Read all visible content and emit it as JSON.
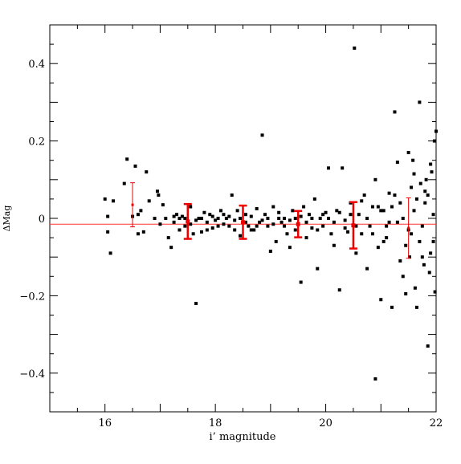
{
  "chart_data": {
    "type": "scatter",
    "xlabel": "i’ magnitude",
    "ylabel": "ΔMag",
    "xlim": [
      15,
      22
    ],
    "ylim": [
      -0.5,
      0.5
    ],
    "x_ticks": [
      16,
      18,
      20,
      22
    ],
    "x_tick_labels": [
      "16",
      "18",
      "20",
      "22"
    ],
    "y_ticks": [
      -0.4,
      -0.2,
      0,
      0.2,
      0.4
    ],
    "y_tick_labels": [
      "−0.4",
      "−0.2",
      "0",
      "0.2",
      "0.4"
    ],
    "grid": false,
    "reference_line": {
      "y": -0.015,
      "color": "#ff3333"
    },
    "colors": {
      "points": "#000000",
      "error_bars": "#ee0000",
      "reference_line": "#ff3333"
    },
    "binned_points": [
      {
        "x": 16.5,
        "y": 0.035,
        "err": 0.057
      },
      {
        "x": 17.5,
        "y": -0.008,
        "err": 0.045
      },
      {
        "x": 18.5,
        "y": -0.01,
        "err": 0.043
      },
      {
        "x": 19.5,
        "y": -0.015,
        "err": 0.034
      },
      {
        "x": 20.5,
        "y": -0.018,
        "err": 0.06
      },
      {
        "x": 21.5,
        "y": -0.025,
        "err": 0.078
      }
    ],
    "points": [
      [
        16.0,
        0.05
      ],
      [
        16.05,
        0.005
      ],
      [
        16.1,
        -0.09
      ],
      [
        16.15,
        0.045
      ],
      [
        16.05,
        -0.035
      ],
      [
        16.35,
        0.09
      ],
      [
        16.4,
        0.153
      ],
      [
        16.55,
        0.135
      ],
      [
        16.6,
        -0.04
      ],
      [
        16.65,
        0.02
      ],
      [
        16.7,
        -0.035
      ],
      [
        16.75,
        0.12
      ],
      [
        16.8,
        0.045
      ],
      [
        16.6,
        0.01
      ],
      [
        16.95,
        0.07
      ],
      [
        16.97,
        0.06
      ],
      [
        17.0,
        -0.015
      ],
      [
        17.05,
        0.035
      ],
      [
        16.9,
        0.0
      ],
      [
        16.5,
        0.005
      ],
      [
        17.1,
        0.0
      ],
      [
        17.15,
        -0.05
      ],
      [
        17.2,
        -0.075
      ],
      [
        17.25,
        -0.01
      ],
      [
        17.3,
        0.01
      ],
      [
        17.35,
        -0.03
      ],
      [
        17.4,
        0.005
      ],
      [
        17.45,
        -0.02
      ],
      [
        17.55,
        0.03
      ],
      [
        17.6,
        -0.04
      ],
      [
        17.65,
        -0.22
      ],
      [
        17.7,
        0.0
      ],
      [
        17.75,
        -0.035
      ],
      [
        17.8,
        0.015
      ],
      [
        17.85,
        -0.01
      ],
      [
        17.9,
        0.01
      ],
      [
        17.95,
        -0.025
      ],
      [
        18.0,
        -0.005
      ],
      [
        18.05,
        -0.02
      ],
      [
        18.1,
        0.02
      ],
      [
        18.15,
        -0.015
      ],
      [
        18.2,
        0.0
      ],
      [
        18.25,
        0.005
      ],
      [
        18.3,
        0.06
      ],
      [
        18.35,
        -0.03
      ],
      [
        18.4,
        0.02
      ],
      [
        18.45,
        -0.045
      ],
      [
        18.55,
        0.01
      ],
      [
        18.6,
        -0.02
      ],
      [
        18.65,
        0.005
      ],
      [
        18.7,
        -0.03
      ],
      [
        18.75,
        0.025
      ],
      [
        18.8,
        -0.01
      ],
      [
        18.85,
        0.215
      ],
      [
        18.9,
        0.01
      ],
      [
        18.95,
        -0.02
      ],
      [
        19.0,
        -0.085
      ],
      [
        19.05,
        0.03
      ],
      [
        19.1,
        -0.06
      ],
      [
        19.15,
        0.015
      ],
      [
        19.2,
        -0.01
      ],
      [
        19.25,
        0.0
      ],
      [
        19.3,
        -0.04
      ],
      [
        19.35,
        -0.075
      ],
      [
        19.4,
        0.02
      ],
      [
        19.45,
        -0.03
      ],
      [
        19.55,
        -0.165
      ],
      [
        19.6,
        0.03
      ],
      [
        19.65,
        -0.05
      ],
      [
        19.7,
        0.01
      ],
      [
        19.75,
        -0.025
      ],
      [
        19.8,
        0.05
      ],
      [
        19.85,
        -0.13
      ],
      [
        19.9,
        0.0
      ],
      [
        19.95,
        -0.02
      ],
      [
        20.0,
        0.015
      ],
      [
        20.05,
        0.13
      ],
      [
        20.1,
        -0.04
      ],
      [
        20.15,
        -0.07
      ],
      [
        20.2,
        0.02
      ],
      [
        20.25,
        -0.185
      ],
      [
        20.3,
        0.13
      ],
      [
        20.35,
        -0.005
      ],
      [
        20.4,
        -0.035
      ],
      [
        20.45,
        0.04
      ],
      [
        20.55,
        -0.09
      ],
      [
        20.6,
        0.01
      ],
      [
        20.65,
        -0.04
      ],
      [
        20.7,
        0.06
      ],
      [
        20.75,
        -0.13
      ],
      [
        20.8,
        -0.02
      ],
      [
        20.85,
        0.03
      ],
      [
        20.9,
        -0.415
      ],
      [
        20.95,
        -0.075
      ],
      [
        21.0,
        -0.21
      ],
      [
        21.05,
        0.02
      ],
      [
        21.1,
        -0.05
      ],
      [
        21.15,
        0.065
      ],
      [
        21.2,
        -0.23
      ],
      [
        21.25,
        0.275
      ],
      [
        21.3,
        -0.01
      ],
      [
        21.35,
        0.04
      ],
      [
        21.4,
        -0.15
      ],
      [
        21.45,
        -0.195
      ],
      [
        21.5,
        0.17
      ],
      [
        21.55,
        -0.04
      ],
      [
        21.6,
        0.115
      ],
      [
        21.65,
        -0.23
      ],
      [
        21.7,
        0.3
      ],
      [
        21.75,
        -0.1
      ],
      [
        21.8,
        0.07
      ],
      [
        21.85,
        -0.33
      ],
      [
        21.9,
        0.14
      ],
      [
        21.95,
        -0.06
      ],
      [
        22.0,
        0.225
      ],
      [
        20.52,
        0.44
      ],
      [
        21.3,
        0.145
      ],
      [
        20.9,
        0.1
      ],
      [
        21.0,
        0.02
      ],
      [
        21.1,
        -0.02
      ],
      [
        21.2,
        0.03
      ],
      [
        21.4,
        0.0
      ],
      [
        21.5,
        -0.03
      ],
      [
        21.6,
        0.02
      ],
      [
        21.7,
        -0.06
      ],
      [
        21.8,
        0.04
      ],
      [
        21.9,
        -0.09
      ],
      [
        21.95,
        0.01
      ],
      [
        21.85,
        0.06
      ],
      [
        21.75,
        -0.02
      ],
      [
        21.65,
        0.05
      ],
      [
        21.55,
        0.08
      ],
      [
        21.45,
        -0.07
      ],
      [
        21.35,
        -0.11
      ],
      [
        21.25,
        0.06
      ],
      [
        21.15,
        -0.01
      ],
      [
        21.05,
        -0.06
      ],
      [
        20.95,
        0.03
      ],
      [
        20.85,
        -0.04
      ],
      [
        20.75,
        0.0
      ],
      [
        20.65,
        0.045
      ],
      [
        20.55,
        -0.02
      ],
      [
        20.45,
        0.01
      ],
      [
        20.35,
        -0.025
      ],
      [
        20.25,
        0.015
      ],
      [
        20.15,
        -0.01
      ],
      [
        20.05,
        0.0
      ],
      [
        19.95,
        0.01
      ],
      [
        19.85,
        -0.03
      ],
      [
        19.75,
        0.0
      ],
      [
        19.65,
        -0.01
      ],
      [
        19.55,
        0.005
      ],
      [
        19.45,
        0.0
      ],
      [
        19.35,
        -0.005
      ],
      [
        19.25,
        -0.02
      ],
      [
        19.15,
        0.0
      ],
      [
        19.05,
        -0.015
      ],
      [
        18.95,
        0.0
      ],
      [
        18.85,
        -0.005
      ],
      [
        18.75,
        -0.02
      ],
      [
        18.65,
        -0.03
      ],
      [
        18.55,
        -0.01
      ],
      [
        18.45,
        0.0
      ],
      [
        18.35,
        -0.005
      ],
      [
        18.25,
        -0.02
      ],
      [
        18.15,
        0.01
      ],
      [
        18.05,
        0.0
      ],
      [
        17.95,
        0.005
      ],
      [
        17.85,
        -0.03
      ],
      [
        17.75,
        0.0
      ],
      [
        17.65,
        -0.005
      ],
      [
        17.55,
        -0.015
      ],
      [
        17.45,
        0.0
      ],
      [
        17.35,
        0.0
      ],
      [
        17.25,
        0.005
      ],
      [
        21.98,
        -0.19
      ],
      [
        21.97,
        0.2
      ],
      [
        21.92,
        0.12
      ],
      [
        21.88,
        -0.14
      ],
      [
        21.82,
        0.1
      ],
      [
        21.78,
        -0.12
      ],
      [
        21.72,
        0.09
      ],
      [
        21.62,
        -0.18
      ],
      [
        21.58,
        0.15
      ],
      [
        21.52,
        -0.1
      ]
    ]
  }
}
